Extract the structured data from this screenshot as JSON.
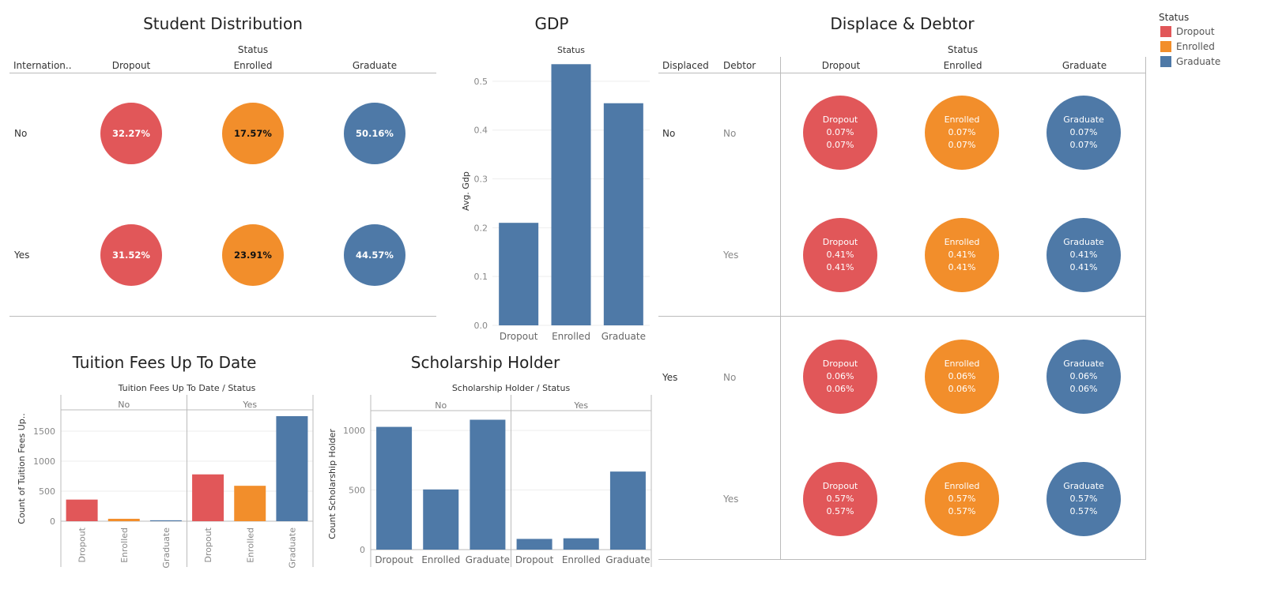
{
  "colors": {
    "Dropout": "#e15759",
    "Enrolled": "#f28e2b",
    "Graduate": "#4e79a7",
    "grid": "#eeeeee",
    "axis": "#bbbbbb"
  },
  "legend": {
    "title": "Status",
    "items": [
      {
        "label": "Dropout",
        "key": "Dropout"
      },
      {
        "label": "Enrolled",
        "key": "Enrolled"
      },
      {
        "label": "Graduate",
        "key": "Graduate"
      }
    ]
  },
  "student_distribution": {
    "title": "Student Distribution",
    "column_group": "Status",
    "row_header": "Internation..",
    "columns": [
      "Dropout",
      "Enrolled",
      "Graduate"
    ],
    "rows": [
      {
        "label": "No",
        "values": [
          "32.27%",
          "17.57%",
          "50.16%"
        ]
      },
      {
        "label": "Yes",
        "values": [
          "31.52%",
          "23.91%",
          "44.57%"
        ]
      }
    ]
  },
  "displace_debtor": {
    "title": "Displace & Debtor",
    "column_group": "Status",
    "row_header_1": "Displaced",
    "row_header_2": "Debtor",
    "columns": [
      "Dropout",
      "Enrolled",
      "Graduate"
    ],
    "rows": [
      {
        "displaced": "No",
        "debtor": "No",
        "value": "0.07%"
      },
      {
        "displaced": "",
        "debtor": "Yes",
        "value": "0.41%"
      },
      {
        "displaced": "Yes",
        "debtor": "No",
        "value": "0.06%"
      },
      {
        "displaced": "",
        "debtor": "Yes",
        "value": "0.57%"
      }
    ]
  },
  "chart_data": [
    {
      "type": "bar",
      "title": "GDP",
      "header": "Status",
      "categories": [
        "Dropout",
        "Enrolled",
        "Graduate"
      ],
      "values": [
        0.21,
        0.535,
        0.455
      ],
      "ylabel": "Avg. Gdp",
      "ylim": [
        0,
        0.55
      ],
      "yticks": [
        "0.0",
        "0.1",
        "0.2",
        "0.3",
        "0.4",
        "0.5"
      ],
      "grid": true
    },
    {
      "type": "bar",
      "title": "Tuition Fees Up To Date",
      "header": "Tuition Fees Up To Date  /  Status",
      "ylabel": "Count of Tuition Fees Up..",
      "ylim": [
        0,
        1750
      ],
      "yticks": [
        "0",
        "500",
        "1000",
        "1500"
      ],
      "panels": [
        {
          "label": "No",
          "categories": [
            "Dropout",
            "Enrolled",
            "Graduate"
          ],
          "values": [
            360,
            40,
            15
          ]
        },
        {
          "label": "Yes",
          "categories": [
            "Dropout",
            "Enrolled",
            "Graduate"
          ],
          "values": [
            780,
            590,
            1750
          ]
        }
      ],
      "grid": true
    },
    {
      "type": "bar",
      "title": "Scholarship Holder",
      "header": "Scholarship Holder  /  Status",
      "ylabel": "Count Scholarship Holder",
      "ylim": [
        0,
        1100
      ],
      "yticks": [
        "0",
        "500",
        "1000"
      ],
      "panels": [
        {
          "label": "No",
          "categories": [
            "Dropout",
            "Enrolled",
            "Graduate"
          ],
          "values": [
            1030,
            505,
            1090
          ]
        },
        {
          "label": "Yes",
          "categories": [
            "Dropout",
            "Enrolled",
            "Graduate"
          ],
          "values": [
            90,
            95,
            655
          ]
        }
      ],
      "grid": true
    }
  ]
}
